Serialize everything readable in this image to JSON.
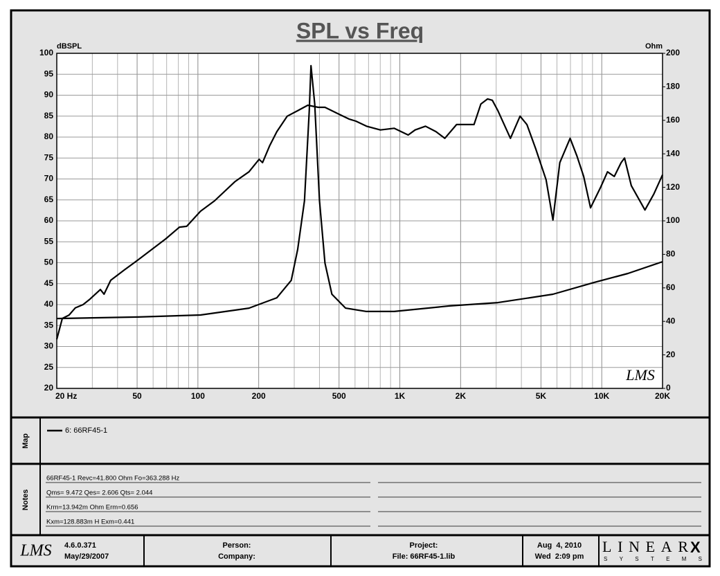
{
  "chart_data": {
    "type": "line",
    "title": "SPL vs Freq",
    "ylabel": "dBSPL",
    "y2label": "Ohm",
    "watermark": "LMS",
    "xscale": "log",
    "xlim": [
      20,
      20000
    ],
    "xticks": [
      {
        "value": 20,
        "label": "20 Hz"
      },
      50,
      100,
      200,
      500,
      {
        "value": 1000,
        "label": "1K"
      },
      {
        "value": 2000,
        "label": "2K"
      },
      {
        "value": 5000,
        "label": "5K"
      },
      {
        "value": 10000,
        "label": "10K"
      },
      {
        "value": 20000,
        "label": "20K"
      }
    ],
    "minor_xticks": [
      30,
      40,
      60,
      70,
      80,
      90,
      300,
      400,
      600,
      700,
      800,
      900,
      3000,
      4000,
      6000,
      7000,
      8000,
      9000
    ],
    "ylim": [
      20,
      100
    ],
    "yticks": [
      20,
      25,
      30,
      35,
      40,
      45,
      50,
      55,
      60,
      65,
      70,
      75,
      80,
      85,
      90,
      95,
      100
    ],
    "y2lim": [
      0,
      200
    ],
    "y2ticks": [
      0,
      20,
      40,
      60,
      80,
      100,
      120,
      140,
      160,
      180,
      200
    ],
    "grid": true,
    "series": [
      {
        "name": "6: 66RF45-1",
        "color": "#000000",
        "x": [
          20,
          21.3,
          23,
          24.7,
          27,
          29.2,
          32.9,
          34.3,
          37,
          43.3,
          50.6,
          59.2,
          69.3,
          81,
          88,
          103,
          121,
          153,
          179,
          201,
          209,
          227,
          246,
          277,
          312,
          350,
          394,
          426,
          498,
          561,
          606,
          684,
          801,
          937,
          1100,
          1190,
          1340,
          1510,
          1670,
          1910,
          2070,
          2330,
          2520,
          2720,
          2870,
          3060,
          3530,
          3940,
          4260,
          4710,
          5300,
          5730,
          6200,
          6970,
          7530,
          8140,
          8800,
          9890,
          10680,
          11540,
          12470,
          12970,
          14010,
          16370,
          18100,
          20000
        ],
        "values": [
          31.7,
          36.7,
          37.5,
          39.2,
          40,
          41.3,
          43.6,
          42.5,
          45.8,
          48.3,
          50.7,
          53.2,
          55.7,
          58.5,
          58.7,
          62.3,
          64.8,
          69.4,
          71.7,
          74.7,
          73.9,
          78,
          81.3,
          85,
          86.3,
          87.6,
          87.1,
          87.1,
          85.5,
          84.3,
          83.8,
          82.6,
          81.7,
          82.1,
          80.5,
          81.7,
          82.6,
          81.3,
          79.7,
          83,
          83,
          83,
          87.9,
          89.1,
          88.8,
          86.3,
          79.7,
          85,
          83,
          77.2,
          69.8,
          60.2,
          73.9,
          79.7,
          75.5,
          70.6,
          63.1,
          68.1,
          71.7,
          70.6,
          73.9,
          75,
          68.4,
          62.6,
          66.4,
          71
        ]
      },
      {
        "color": "#000000",
        "axis": "y2",
        "x": [
          20,
          50.6,
          103,
          179,
          246,
          290,
          312,
          337,
          356,
          363,
          379,
          400,
          426,
          461,
          539,
          684,
          937,
          1760,
          3060,
          5730,
          9150,
          13480,
          20000
        ],
        "values": [
          41.7,
          42.6,
          43.8,
          47.9,
          54.1,
          64.5,
          83,
          112,
          165.7,
          192.6,
          169.8,
          112,
          74.8,
          56.2,
          47.9,
          45.9,
          45.9,
          49.2,
          51.2,
          56.2,
          63.2,
          68.6,
          75.6
        ]
      }
    ]
  },
  "map_label": "Map",
  "notes_label": "Notes",
  "notes": [
    "66RF45-1 Revc=41.800 Ohm  Fo=363.288 Hz",
    "Qms= 9.472  Qes= 2.606  Qts= 2.044",
    "Krm=13.942m Ohm  Erm=0.656",
    "Kxm=128.883m H  Exm=0.441"
  ],
  "footer": {
    "logo": "LMS",
    "version": "4.6.0.371",
    "build_date": "May/29/2007",
    "person": "Person:",
    "company": "Company:",
    "project": "Project:",
    "file": "File: 66RF45-1.lib",
    "date": "Aug  4, 2010",
    "time": "Wed  2:09 pm",
    "brand": "LINEAR",
    "brand_x": "X",
    "brand_sub": "SYSTEMS"
  }
}
